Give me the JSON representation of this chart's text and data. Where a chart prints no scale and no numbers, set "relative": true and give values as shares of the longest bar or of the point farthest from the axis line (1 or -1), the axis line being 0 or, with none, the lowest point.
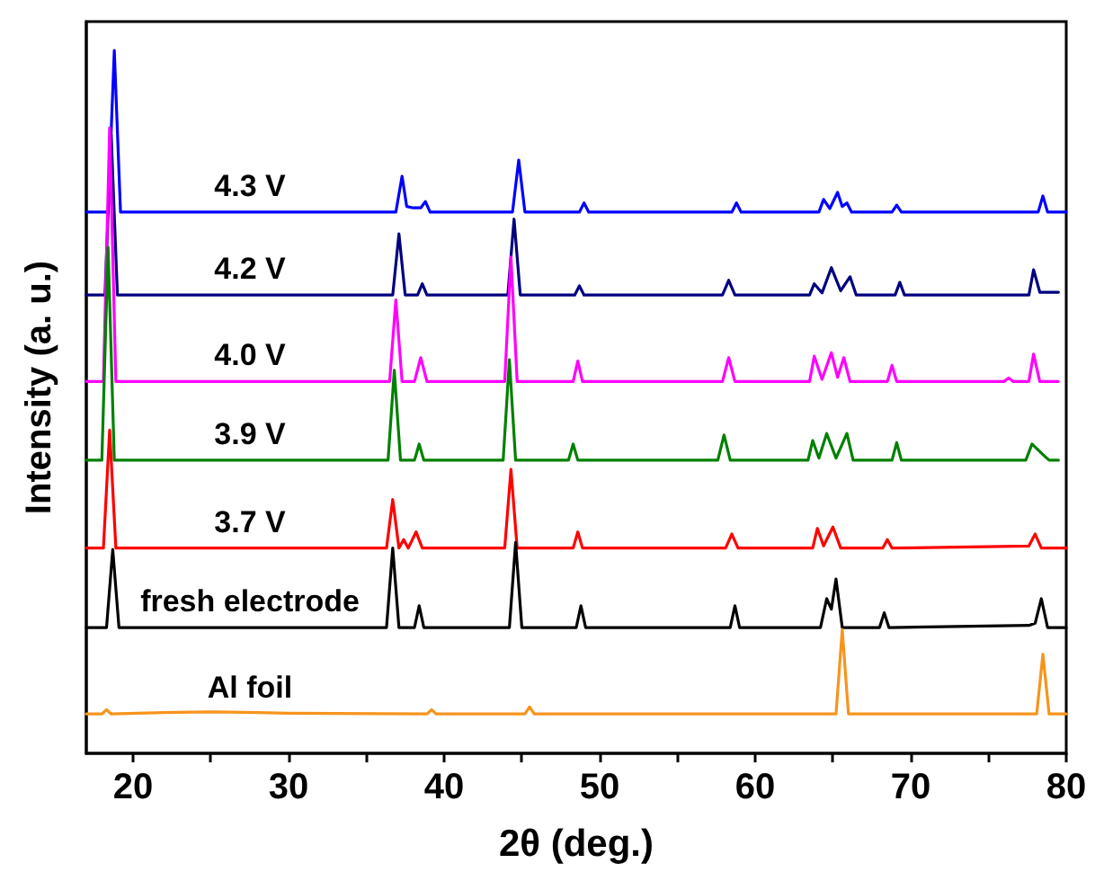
{
  "chart_data": {
    "type": "line",
    "xlabel": "2θ (deg.)",
    "ylabel": "Intensity (a. u.)",
    "relative": true,
    "tick_labels": "x",
    "grid": false,
    "marker": "none",
    "line_style": "solid",
    "legend": false,
    "xlim": [
      17,
      80
    ],
    "xticks": [
      20,
      {
        "value": 25,
        "label": null
      },
      30,
      {
        "value": 35,
        "label": null
      },
      40,
      {
        "value": 45,
        "label": null
      },
      50,
      {
        "value": 55,
        "label": null
      },
      60,
      {
        "value": 65,
        "label": null
      },
      70,
      {
        "value": 75,
        "label": null
      },
      80
    ],
    "series": [
      {
        "name": "4.3 V",
        "color": "#0000ff",
        "x": [
          17,
          18.4,
          18.8,
          19.2,
          36.9,
          37.3,
          37.6,
          38.0,
          38.5,
          38.8,
          39.1,
          44.4,
          44.8,
          45.2,
          48.7,
          49.0,
          49.3,
          58.5,
          58.8,
          59.1,
          64.1,
          64.4,
          64.8,
          65.3,
          65.6,
          65.9,
          66.2,
          68.8,
          69.1,
          69.4,
          78.2,
          78.5,
          78.8,
          80
        ],
        "values": [
          0.77,
          0.77,
          1.0,
          0.77,
          0.77,
          0.821,
          0.778,
          0.776,
          0.776,
          0.785,
          0.77,
          0.77,
          0.844,
          0.77,
          0.77,
          0.783,
          0.77,
          0.77,
          0.783,
          0.77,
          0.77,
          0.788,
          0.775,
          0.798,
          0.778,
          0.783,
          0.77,
          0.77,
          0.78,
          0.77,
          0.77,
          0.793,
          0.77,
          0.77
        ]
      },
      {
        "name": "4.2 V",
        "color": "#000080",
        "x": [
          17,
          18.2,
          18.6,
          19.0,
          36.7,
          37.1,
          37.5,
          38.3,
          38.6,
          38.9,
          44.1,
          44.5,
          44.9,
          48.4,
          48.7,
          49.0,
          57.9,
          58.3,
          58.7,
          63.5,
          63.8,
          64.3,
          64.9,
          65.5,
          66.1,
          66.5,
          69.0,
          69.3,
          69.6,
          77.6,
          77.9,
          78.3,
          79.5
        ],
        "values": [
          0.652,
          0.652,
          0.88,
          0.652,
          0.652,
          0.739,
          0.652,
          0.652,
          0.668,
          0.652,
          0.652,
          0.76,
          0.652,
          0.652,
          0.665,
          0.652,
          0.652,
          0.673,
          0.652,
          0.652,
          0.668,
          0.655,
          0.691,
          0.658,
          0.678,
          0.652,
          0.652,
          0.67,
          0.652,
          0.652,
          0.688,
          0.656,
          0.656
        ]
      },
      {
        "name": "4.0 V",
        "color": "#ff00ff",
        "x": [
          17,
          18.1,
          18.5,
          18.9,
          36.5,
          36.9,
          37.3,
          38.1,
          38.5,
          38.9,
          43.9,
          44.3,
          44.7,
          48.3,
          48.6,
          48.9,
          57.9,
          58.3,
          58.7,
          63.5,
          63.8,
          64.3,
          64.9,
          65.3,
          65.7,
          66.1,
          68.5,
          68.8,
          69.1,
          76.0,
          76.3,
          76.6,
          77.6,
          77.9,
          78.3,
          79.5
        ],
        "values": [
          0.529,
          0.529,
          0.89,
          0.529,
          0.529,
          0.645,
          0.529,
          0.529,
          0.563,
          0.529,
          0.529,
          0.706,
          0.529,
          0.529,
          0.558,
          0.529,
          0.529,
          0.563,
          0.529,
          0.529,
          0.565,
          0.532,
          0.57,
          0.535,
          0.563,
          0.529,
          0.529,
          0.552,
          0.529,
          0.529,
          0.534,
          0.529,
          0.529,
          0.568,
          0.529,
          0.529
        ]
      },
      {
        "name": "3.9 V",
        "color": "#008000",
        "x": [
          17,
          18.0,
          18.4,
          18.8,
          36.4,
          36.8,
          37.2,
          38.1,
          38.4,
          38.7,
          43.8,
          44.2,
          44.6,
          48.0,
          48.3,
          48.6,
          57.6,
          58.0,
          58.4,
          63.4,
          63.7,
          64.1,
          64.6,
          65.2,
          65.9,
          66.3,
          68.8,
          69.1,
          69.4,
          77.4,
          77.8,
          78.5,
          78.9,
          79.5
        ],
        "values": [
          0.417,
          0.417,
          0.72,
          0.417,
          0.417,
          0.545,
          0.417,
          0.417,
          0.44,
          0.417,
          0.417,
          0.56,
          0.417,
          0.417,
          0.44,
          0.417,
          0.417,
          0.453,
          0.417,
          0.417,
          0.445,
          0.42,
          0.455,
          0.42,
          0.455,
          0.417,
          0.417,
          0.442,
          0.417,
          0.417,
          0.44,
          0.425,
          0.417,
          0.417
        ]
      },
      {
        "name": "3.7 V",
        "color": "#ff0000",
        "x": [
          17,
          18.1,
          18.5,
          18.9,
          36.3,
          36.7,
          37.1,
          37.4,
          37.7,
          38.2,
          38.6,
          43.9,
          44.3,
          44.7,
          48.3,
          48.6,
          48.9,
          58.1,
          58.5,
          58.9,
          63.7,
          64.0,
          64.4,
          65.0,
          65.5,
          68.2,
          68.5,
          68.8,
          77.6,
          78.0,
          78.4,
          80
        ],
        "values": [
          0.292,
          0.292,
          0.46,
          0.292,
          0.292,
          0.361,
          0.292,
          0.304,
          0.292,
          0.315,
          0.292,
          0.292,
          0.404,
          0.292,
          0.292,
          0.315,
          0.292,
          0.292,
          0.312,
          0.292,
          0.292,
          0.32,
          0.295,
          0.322,
          0.292,
          0.292,
          0.304,
          0.292,
          0.295,
          0.312,
          0.292,
          0.292
        ]
      },
      {
        "name": "fresh electrode",
        "color": "#000000",
        "x": [
          17,
          18.3,
          18.7,
          19.1,
          36.3,
          36.7,
          37.1,
          38.1,
          38.4,
          38.7,
          44.2,
          44.6,
          45.0,
          48.5,
          48.8,
          49.1,
          58.4,
          58.7,
          59.0,
          64.2,
          64.6,
          64.9,
          65.2,
          65.6,
          68.0,
          68.3,
          68.6,
          77.6,
          78.0,
          78.4,
          78.8,
          80
        ],
        "values": [
          0.179,
          0.179,
          0.29,
          0.179,
          0.179,
          0.292,
          0.179,
          0.179,
          0.21,
          0.179,
          0.179,
          0.3,
          0.179,
          0.179,
          0.21,
          0.179,
          0.179,
          0.21,
          0.179,
          0.179,
          0.22,
          0.205,
          0.248,
          0.179,
          0.179,
          0.2,
          0.179,
          0.182,
          0.185,
          0.22,
          0.179,
          0.179
        ]
      },
      {
        "name": "Al foil",
        "color": "#f7941d",
        "x": [
          17,
          18.0,
          18.3,
          18.6,
          22,
          25,
          28,
          30,
          38.9,
          39.2,
          39.5,
          45.2,
          45.5,
          45.8,
          65.2,
          65.6,
          66.0,
          78.1,
          78.5,
          78.9,
          80
        ],
        "values": [
          0.056,
          0.056,
          0.062,
          0.056,
          0.058,
          0.059,
          0.058,
          0.057,
          0.056,
          0.062,
          0.056,
          0.056,
          0.066,
          0.056,
          0.056,
          0.176,
          0.056,
          0.056,
          0.141,
          0.056,
          0.056
        ]
      }
    ]
  }
}
